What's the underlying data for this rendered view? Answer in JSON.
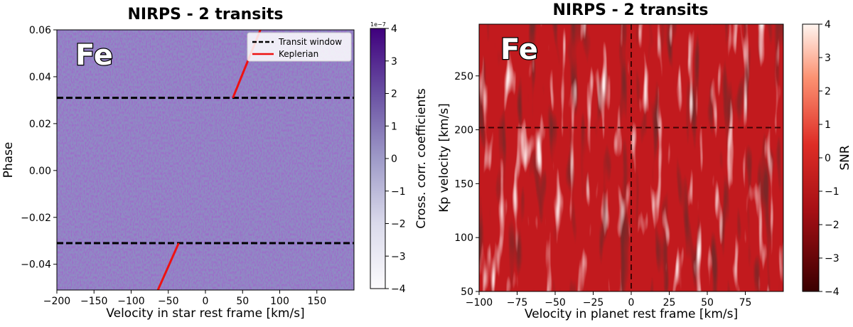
{
  "chart_data": [
    {
      "type": "heatmap",
      "title": "NIRPS - 2 transits",
      "species": "Fe",
      "xlabel": "Velocity in star rest frame [km/s]",
      "ylabel": "Phase",
      "xlim": [
        -200,
        200
      ],
      "ylim": [
        -0.051,
        0.06
      ],
      "xticks": [
        -200,
        -150,
        -100,
        -50,
        0,
        50,
        100,
        150
      ],
      "yticks": [
        -0.04,
        -0.02,
        0.0,
        0.02,
        0.04,
        0.06
      ],
      "ytick_labels": [
        "−0.04",
        "−0.02",
        "0.00",
        "0.02",
        "0.04",
        "0.06"
      ],
      "xtick_labels": [
        "−200",
        "−150",
        "−100",
        "−50",
        "0",
        "50",
        "100",
        "150"
      ],
      "colorbar": {
        "label": "Cross. corr. coefficients",
        "scale_text": "1e−7",
        "range": [
          -4,
          4
        ],
        "ticks": [
          -4,
          -3,
          -2,
          -1,
          0,
          1,
          2,
          3,
          4
        ],
        "tick_labels": [
          "−4",
          "−3",
          "−2",
          "−1",
          "0",
          "1",
          "2",
          "3",
          "4"
        ],
        "colormap": "Purples"
      },
      "transit_window": [
        -0.031,
        0.031
      ],
      "keplerian": [
        {
          "x": [
            -64,
            -36
          ],
          "y": [
            -0.051,
            -0.031
          ]
        },
        {
          "x": [
            37,
            74
          ],
          "y": [
            0.031,
            0.06
          ]
        }
      ],
      "legend": {
        "position": "top-right",
        "entries": [
          {
            "label": "Transit window",
            "style": "dashed",
            "color": "#000000"
          },
          {
            "label": "Keplerian",
            "style": "solid",
            "color": "#ee1111"
          }
        ]
      }
    },
    {
      "type": "heatmap",
      "title": "NIRPS - 2 transits",
      "species": "Fe",
      "xlabel": "Velocity in planet rest frame [km/s]",
      "ylabel": "Kp velocity [km/s]",
      "xlim": [
        -100,
        100
      ],
      "ylim": [
        50,
        298
      ],
      "xticks": [
        -100,
        -75,
        -50,
        -25,
        0,
        25,
        50,
        75
      ],
      "xtick_labels": [
        "−100",
        "−75",
        "−50",
        "−25",
        "0",
        "25",
        "50",
        "75"
      ],
      "yticks": [
        50,
        100,
        150,
        200,
        250
      ],
      "ytick_labels": [
        "50",
        "100",
        "150",
        "200",
        "250"
      ],
      "colorbar": {
        "label": "SNR",
        "range": [
          -4,
          4
        ],
        "ticks": [
          -4,
          -3,
          -2,
          -1,
          0,
          1,
          2,
          3,
          4
        ],
        "tick_labels": [
          "−4",
          "−3",
          "−2",
          "−1",
          "0",
          "1",
          "2",
          "3",
          "4"
        ],
        "colormap": "Reds_r"
      },
      "crosshair": {
        "x": 0,
        "y": 202
      }
    }
  ]
}
